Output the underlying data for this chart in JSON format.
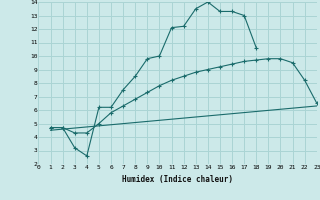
{
  "xlabel": "Humidex (Indice chaleur)",
  "bg_color": "#cce9e9",
  "grid_color": "#aad4d4",
  "line_color": "#1a6b6b",
  "xlim": [
    0,
    23
  ],
  "ylim": [
    2,
    14
  ],
  "xticks": [
    0,
    1,
    2,
    3,
    4,
    5,
    6,
    7,
    8,
    9,
    10,
    11,
    12,
    13,
    14,
    15,
    16,
    17,
    18,
    19,
    20,
    21,
    22,
    23
  ],
  "yticks": [
    2,
    3,
    4,
    5,
    6,
    7,
    8,
    9,
    10,
    11,
    12,
    13,
    14
  ],
  "line1_x": [
    1,
    2,
    3,
    4,
    5,
    6,
    7,
    8,
    9,
    10,
    11,
    12,
    13,
    14,
    15,
    16,
    17,
    18
  ],
  "line1_y": [
    4.7,
    4.7,
    3.2,
    2.6,
    6.2,
    6.2,
    7.5,
    8.5,
    9.8,
    10.0,
    12.1,
    12.2,
    13.5,
    14.0,
    13.3,
    13.3,
    13.0,
    10.6
  ],
  "line2_x": [
    1,
    2,
    3,
    4,
    5,
    6,
    7,
    8,
    9,
    10,
    11,
    12,
    13,
    14,
    15,
    16,
    17,
    18,
    19,
    20,
    21,
    22,
    23
  ],
  "line2_y": [
    4.7,
    4.7,
    4.3,
    4.3,
    5.0,
    5.8,
    6.3,
    6.8,
    7.3,
    7.8,
    8.2,
    8.5,
    8.8,
    9.0,
    9.2,
    9.4,
    9.6,
    9.7,
    9.8,
    9.8,
    9.5,
    8.2,
    6.5
  ],
  "line3_x": [
    1,
    23
  ],
  "line3_y": [
    4.5,
    6.3
  ]
}
